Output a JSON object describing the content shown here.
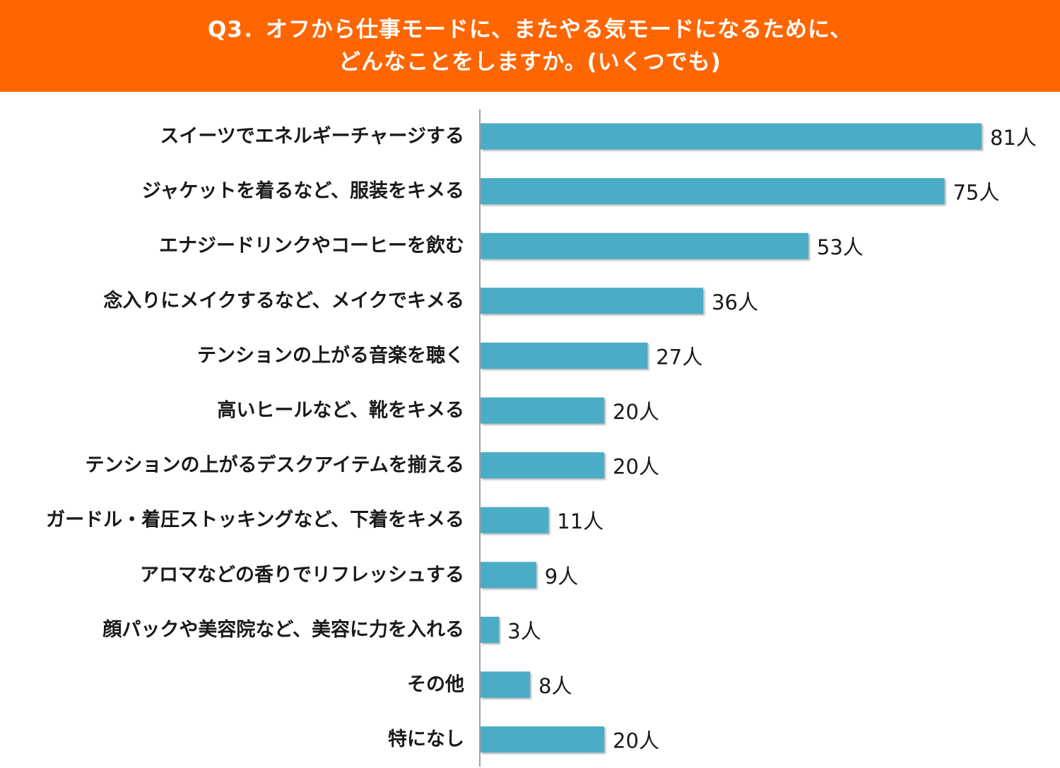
{
  "header": {
    "title_line1": "Q3．オフから仕事モードに、またやる気モードになるために、",
    "title_line2": "どんなことをしますか。(いくつでも)"
  },
  "colors": {
    "header_bg": "#ff6600",
    "bar": "#4bacc6",
    "axis": "#808080"
  },
  "chart_data": {
    "type": "bar",
    "orientation": "horizontal",
    "unit": "人",
    "categories": [
      "スイーツでエネルギーチャージする",
      "ジャケットを着るなど、服装をキメる",
      "エナジードリンクやコーヒーを飲む",
      "念入りにメイクするなど、メイクでキメる",
      "テンションの上がる音楽を聴く",
      "高いヒールなど、靴をキメる",
      "テンションの上がるデスクアイテムを揃える",
      "ガードル・着圧ストッキングなど、下着をキメる",
      "アロマなどの香りでリフレッシュする",
      "顔パックや美容院など、美容に力を入れる",
      "その他",
      "特になし"
    ],
    "values": [
      81,
      75,
      53,
      36,
      27,
      20,
      20,
      11,
      9,
      3,
      8,
      20
    ],
    "value_labels": [
      "81人",
      "75人",
      "53人",
      "36人",
      "27人",
      "20人",
      "20人",
      "11人",
      "9人",
      "3人",
      "8人",
      "20人"
    ],
    "xlim": [
      0,
      81
    ],
    "grid": false,
    "legend": "none"
  }
}
